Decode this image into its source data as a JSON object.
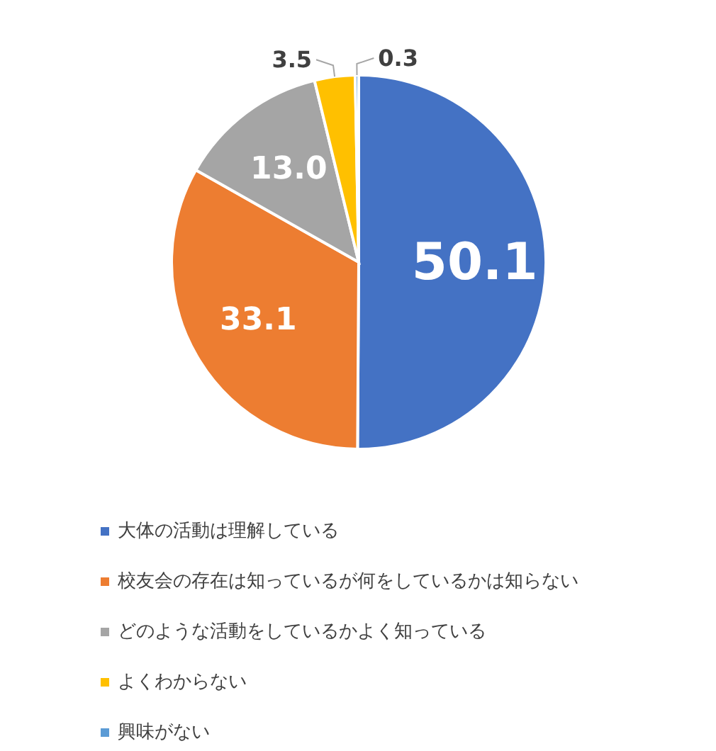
{
  "chart_data": {
    "type": "pie",
    "categories": [
      "大体の活動は理解している",
      "校友会の存在は知っているが何をしているかは知らない",
      "どのような活動をしているかよく知っている",
      "よくわからない",
      "興味がない"
    ],
    "values": [
      50.1,
      33.1,
      13.0,
      3.5,
      0.3
    ],
    "value_labels": [
      "50.1",
      "33.1",
      "13.0",
      "3.5",
      "0.3"
    ],
    "colors": [
      "#4472c4",
      "#ed7d31",
      "#a5a5a5",
      "#ffc000",
      "#5b9bd5"
    ],
    "legend": "bottom"
  }
}
